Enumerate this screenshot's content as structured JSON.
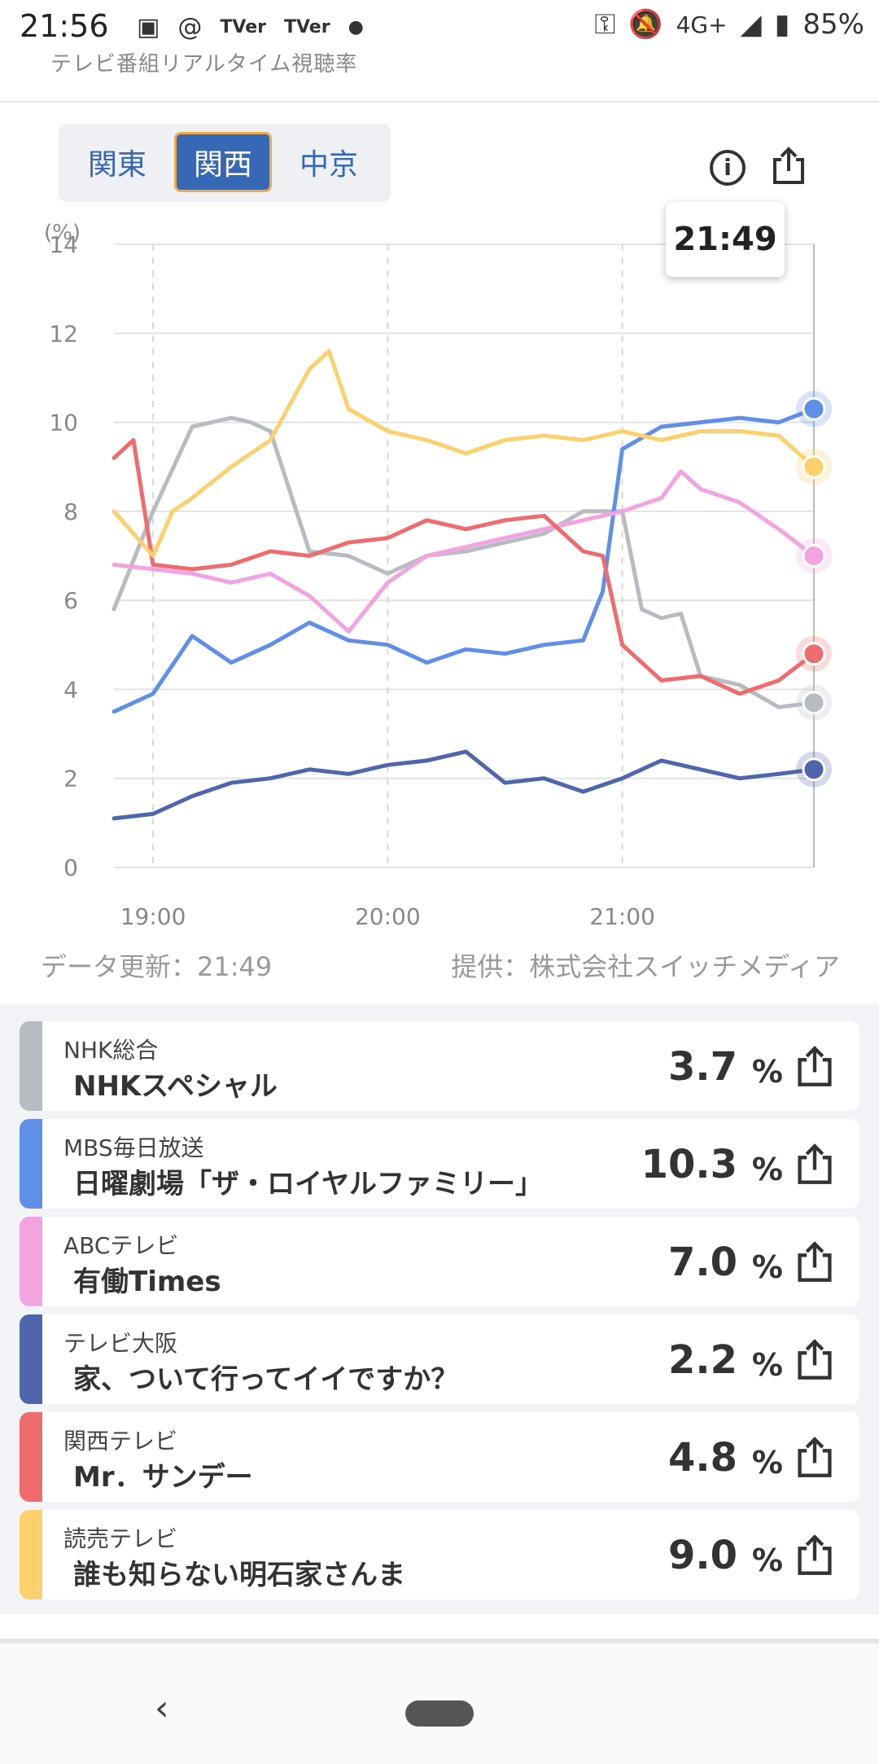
{
  "status_bar": {
    "time": "21:56",
    "left_icons": [
      "image-icon",
      "threads-icon",
      "tver-icon",
      "tver-icon",
      "dot"
    ],
    "tver_label": "TVer",
    "network": "4G+",
    "battery": "85%"
  },
  "header": {
    "title": "テレビ番組リアルタイム視聴率"
  },
  "region_tabs": [
    {
      "label": "関東",
      "active": false
    },
    {
      "label": "関西",
      "active": true
    },
    {
      "label": "中京",
      "active": false
    }
  ],
  "tooltip_time": "21:49",
  "chart_data": {
    "type": "line",
    "y_unit_label": "(%)",
    "ylim": [
      0,
      14
    ],
    "y_ticks": [
      "0",
      "2",
      "4",
      "6",
      "8",
      "10",
      "12",
      "14"
    ],
    "x_ticks": [
      "19:00",
      "20:00",
      "21:00"
    ],
    "x_range": [
      "18:50",
      "21:49"
    ],
    "grid": true,
    "series": [
      {
        "name": "NHK総合",
        "color": "#b7bbc2",
        "x": [
          "18:50",
          "19:00",
          "19:10",
          "19:20",
          "19:25",
          "19:30",
          "19:40",
          "19:50",
          "20:00",
          "20:10",
          "20:20",
          "20:30",
          "20:40",
          "20:50",
          "21:00",
          "21:05",
          "21:10",
          "21:15",
          "21:20",
          "21:30",
          "21:40",
          "21:49"
        ],
        "values": [
          5.8,
          8.0,
          9.9,
          10.1,
          10.0,
          9.8,
          7.1,
          7.0,
          6.6,
          7.0,
          7.1,
          7.3,
          7.5,
          8.0,
          8.0,
          5.8,
          5.6,
          5.7,
          4.3,
          4.1,
          3.6,
          3.7
        ]
      },
      {
        "name": "MBS毎日放送",
        "color": "#5f8fe6",
        "x": [
          "18:50",
          "19:00",
          "19:10",
          "19:20",
          "19:30",
          "19:40",
          "19:50",
          "20:00",
          "20:10",
          "20:20",
          "20:30",
          "20:40",
          "20:50",
          "20:55",
          "21:00",
          "21:10",
          "21:20",
          "21:30",
          "21:40",
          "21:49"
        ],
        "values": [
          3.5,
          3.9,
          5.2,
          4.6,
          5.0,
          5.5,
          5.1,
          5.0,
          4.6,
          4.9,
          4.8,
          5.0,
          5.1,
          6.2,
          9.4,
          9.9,
          10.0,
          10.1,
          10.0,
          10.3
        ]
      },
      {
        "name": "ABCテレビ",
        "color": "#f2a3e0",
        "x": [
          "18:50",
          "19:00",
          "19:10",
          "19:20",
          "19:30",
          "19:40",
          "19:50",
          "20:00",
          "20:10",
          "20:20",
          "20:30",
          "20:40",
          "20:50",
          "21:00",
          "21:10",
          "21:15",
          "21:20",
          "21:30",
          "21:40",
          "21:49"
        ],
        "values": [
          6.8,
          6.7,
          6.6,
          6.4,
          6.6,
          6.1,
          5.3,
          6.4,
          7.0,
          7.2,
          7.4,
          7.6,
          7.8,
          8.0,
          8.3,
          8.9,
          8.5,
          8.2,
          7.6,
          7.0
        ]
      },
      {
        "name": "テレビ大阪",
        "color": "#4f66ad",
        "x": [
          "18:50",
          "19:00",
          "19:10",
          "19:20",
          "19:30",
          "19:40",
          "19:50",
          "20:00",
          "20:10",
          "20:20",
          "20:30",
          "20:40",
          "20:50",
          "21:00",
          "21:10",
          "21:20",
          "21:30",
          "21:40",
          "21:49"
        ],
        "values": [
          1.1,
          1.2,
          1.6,
          1.9,
          2.0,
          2.2,
          2.1,
          2.3,
          2.4,
          2.6,
          1.9,
          2.0,
          1.7,
          2.0,
          2.4,
          2.2,
          2.0,
          2.1,
          2.2
        ]
      },
      {
        "name": "関西テレビ",
        "color": "#ee6b6e",
        "x": [
          "18:50",
          "18:55",
          "19:00",
          "19:10",
          "19:20",
          "19:30",
          "19:40",
          "19:50",
          "20:00",
          "20:10",
          "20:20",
          "20:30",
          "20:40",
          "20:50",
          "20:55",
          "21:00",
          "21:10",
          "21:20",
          "21:30",
          "21:40",
          "21:49"
        ],
        "values": [
          9.2,
          9.6,
          6.8,
          6.7,
          6.8,
          7.1,
          7.0,
          7.3,
          7.4,
          7.8,
          7.6,
          7.8,
          7.9,
          7.1,
          7.0,
          5.0,
          4.2,
          4.3,
          3.9,
          4.2,
          4.8
        ]
      },
      {
        "name": "読売テレビ",
        "color": "#fcd06d",
        "x": [
          "18:50",
          "19:00",
          "19:05",
          "19:10",
          "19:20",
          "19:30",
          "19:40",
          "19:45",
          "19:50",
          "20:00",
          "20:10",
          "20:20",
          "20:30",
          "20:40",
          "20:50",
          "21:00",
          "21:10",
          "21:20",
          "21:30",
          "21:40",
          "21:49"
        ],
        "values": [
          8.0,
          7.0,
          8.0,
          8.3,
          9.0,
          9.6,
          11.2,
          11.6,
          10.3,
          9.8,
          9.6,
          9.3,
          9.6,
          9.7,
          9.6,
          9.8,
          9.6,
          9.8,
          9.8,
          9.7,
          9.0
        ]
      }
    ]
  },
  "footer": {
    "updated": "データ更新：21:49",
    "provider": "提供：株式会社スイッチメディア"
  },
  "programs": [
    {
      "station": "NHK総合",
      "program": "NHKスペシャル",
      "rating": "3.7",
      "unit": "%",
      "color": "#b7bbc2"
    },
    {
      "station": "MBS毎日放送",
      "program": "日曜劇場「ザ・ロイヤルファミリー」",
      "rating": "10.3",
      "unit": "%",
      "color": "#5f8fe6"
    },
    {
      "station": "ABCテレビ",
      "program": "有働Times",
      "rating": "7.0",
      "unit": "%",
      "color": "#f2a3e0"
    },
    {
      "station": "テレビ大阪",
      "program": "家、ついて行ってイイですか？",
      "rating": "2.2",
      "unit": "%",
      "color": "#4f66ad"
    },
    {
      "station": "関西テレビ",
      "program": "Mr．サンデー",
      "rating": "4.8",
      "unit": "%",
      "color": "#ee6b6e"
    },
    {
      "station": "読売テレビ",
      "program": "誰も知らない明石家さんま",
      "rating": "9.0",
      "unit": "%",
      "color": "#fcd06d"
    }
  ],
  "nav": {
    "back_icon": "back-chevron-icon",
    "home_icon": "home-pill-icon"
  }
}
